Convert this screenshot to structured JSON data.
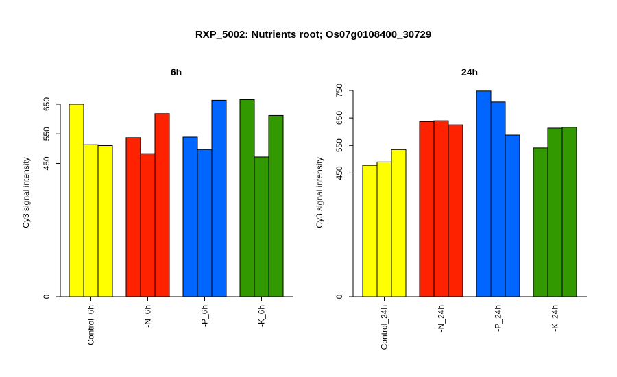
{
  "figure_title": "RXP_5002: Nutrients root; Os07g0108400_30729",
  "chart_data": [
    {
      "type": "bar",
      "title": "6h",
      "ylabel": "Cy3 signal intensity",
      "xlabel": "",
      "ylim": [
        0,
        700
      ],
      "yticks": [
        0,
        450,
        550,
        650
      ],
      "grid": false,
      "categories": [
        "Control_6h",
        "-N_6h",
        "-P_6h",
        "-K_6h"
      ],
      "category_colors": [
        "#ffff00",
        "#ff2200",
        "#0066ff",
        "#339900"
      ],
      "values": [
        [
          650,
          513,
          510
        ],
        [
          537,
          483,
          618
        ],
        [
          539,
          497,
          663
        ],
        [
          665,
          472,
          612
        ]
      ]
    },
    {
      "type": "bar",
      "title": "24h",
      "ylabel": "Cy3 signal intensity",
      "xlabel": "",
      "ylim": [
        0,
        750
      ],
      "yticks": [
        0,
        450,
        550,
        650,
        750
      ],
      "grid": false,
      "categories": [
        "Control_24h",
        "-N_24h",
        "-P_24h",
        "-K_24h"
      ],
      "category_colors": [
        "#ffff00",
        "#ff2200",
        "#0066ff",
        "#339900"
      ],
      "values": [
        [
          478,
          490,
          535
        ],
        [
          637,
          640,
          625
        ],
        [
          748,
          708,
          588
        ],
        [
          541,
          613,
          616
        ]
      ]
    }
  ]
}
